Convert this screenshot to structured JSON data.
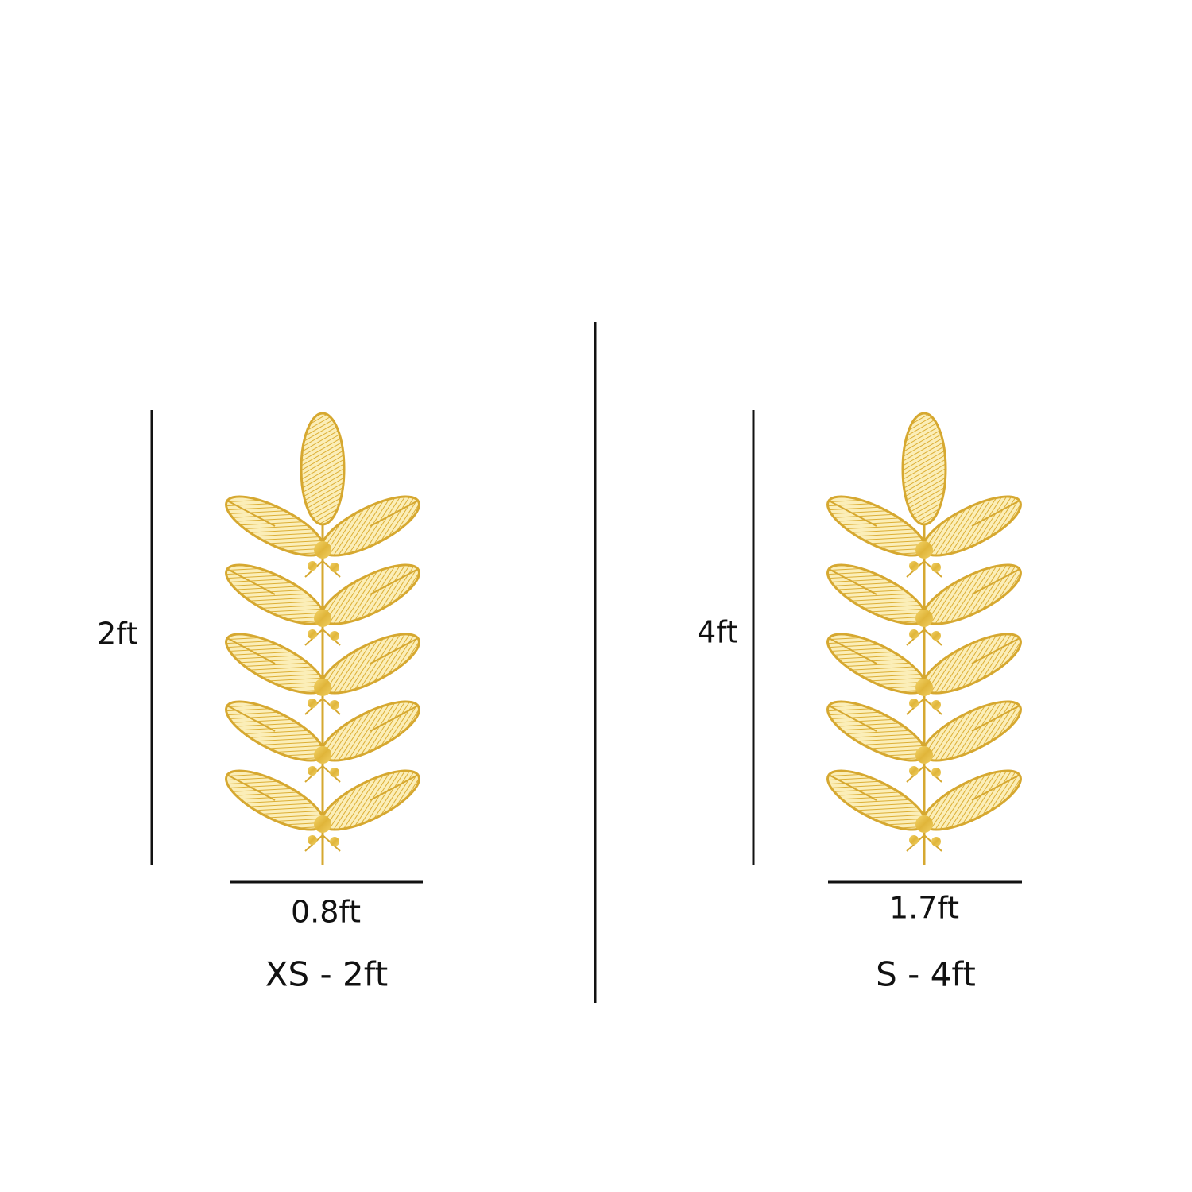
{
  "panels": [
    {
      "height": "2ft",
      "width": "0.8ft",
      "size": "XS - 2ft"
    },
    {
      "height": "4ft",
      "width": "1.7ft",
      "size": "S - 4ft"
    }
  ]
}
